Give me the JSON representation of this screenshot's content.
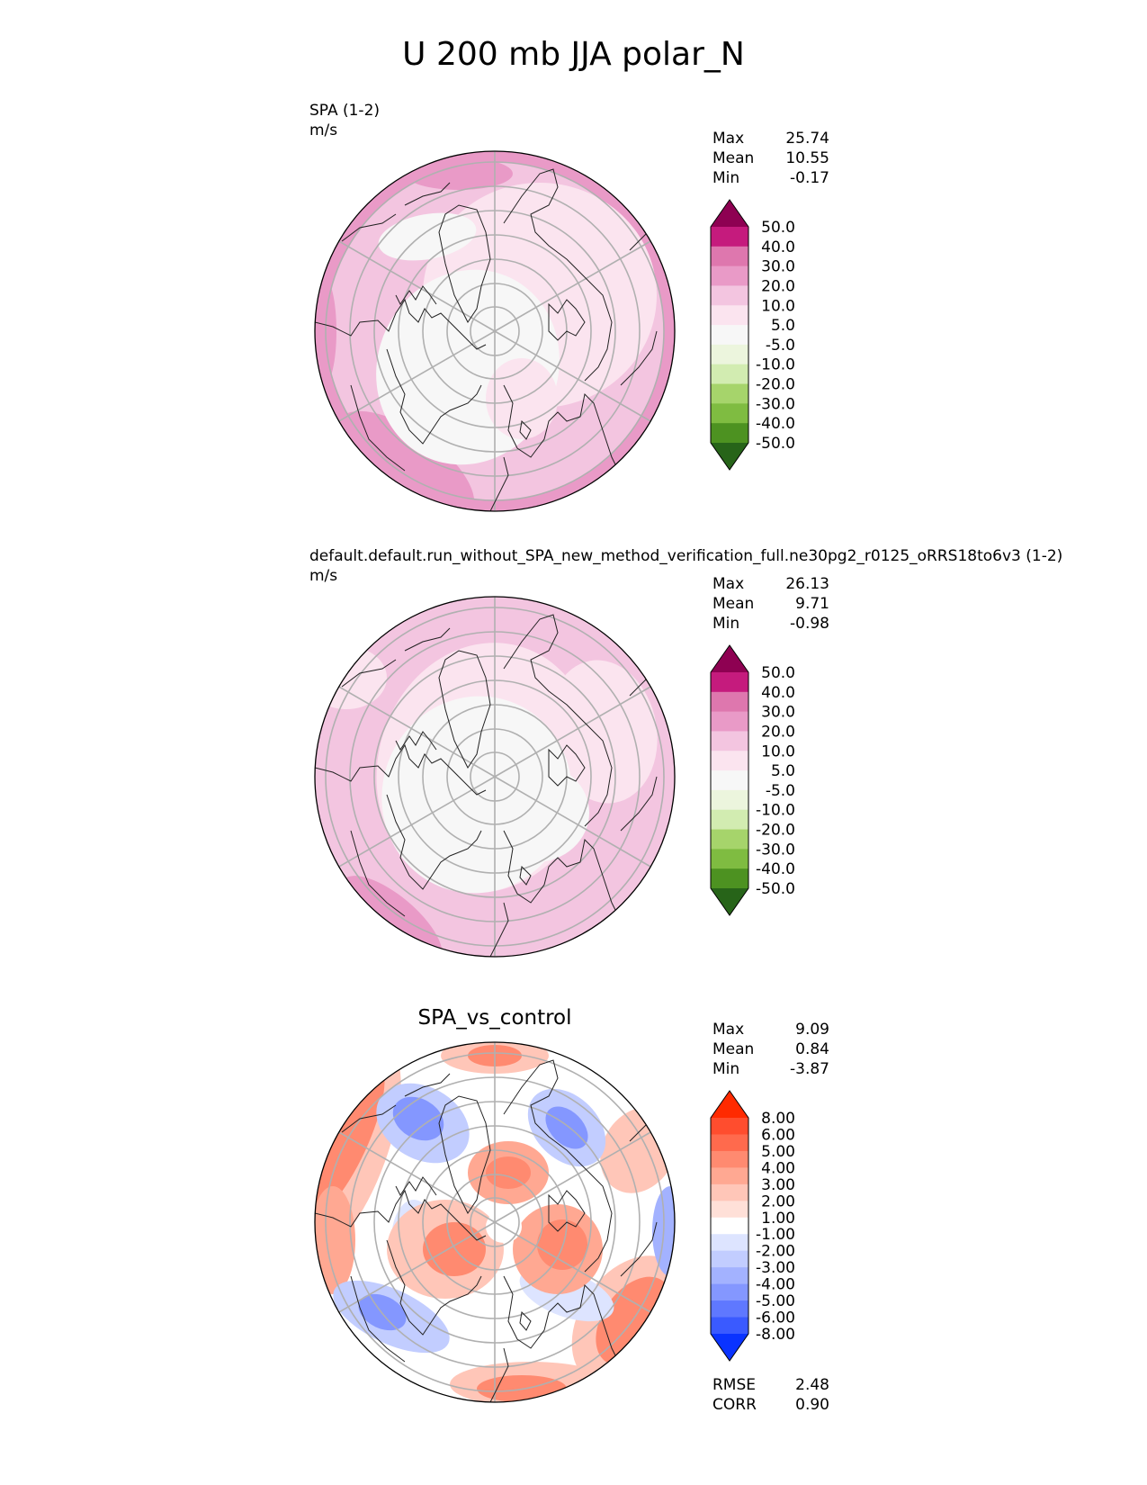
{
  "title": "U 200 mb JJA polar_N",
  "panels": [
    {
      "id": "test",
      "label_line1": "SPA (1-2)",
      "label_line2": "m/s",
      "center_title": "",
      "stats": [
        {
          "name": "Max",
          "value": "25.74"
        },
        {
          "name": "Mean",
          "value": "10.55"
        },
        {
          "name": "Min",
          "value": "-0.17"
        }
      ],
      "colorbar_ticks": [
        "50.0",
        "40.0",
        "30.0",
        "20.0",
        "10.0",
        "5.0",
        "-5.0",
        "-10.0",
        "-20.0",
        "-30.0",
        "-40.0",
        "-50.0"
      ],
      "colorbar_colors": [
        "#8e0152",
        "#c51b7d",
        "#de77ae",
        "#e99ac7",
        "#f3c5e0",
        "#fbe4ef",
        "#f7f7f7",
        "#ecf5dd",
        "#d2ecb1",
        "#a6d46b",
        "#7fbc41",
        "#4d9221",
        "#276419"
      ]
    },
    {
      "id": "reference",
      "label_line1": "default.default.run_without_SPA_new_method_verification_full.ne30pg2_r0125_oRRS18to6v3 (1-2)",
      "label_line2": "m/s",
      "center_title": "",
      "stats": [
        {
          "name": "Max",
          "value": "26.13"
        },
        {
          "name": "Mean",
          "value": "9.71"
        },
        {
          "name": "Min",
          "value": "-0.98"
        }
      ],
      "colorbar_ticks": [
        "50.0",
        "40.0",
        "30.0",
        "20.0",
        "10.0",
        "5.0",
        "-5.0",
        "-10.0",
        "-20.0",
        "-30.0",
        "-40.0",
        "-50.0"
      ],
      "colorbar_colors": [
        "#8e0152",
        "#c51b7d",
        "#de77ae",
        "#e99ac7",
        "#f3c5e0",
        "#fbe4ef",
        "#f7f7f7",
        "#ecf5dd",
        "#d2ecb1",
        "#a6d46b",
        "#7fbc41",
        "#4d9221",
        "#276419"
      ]
    },
    {
      "id": "difference",
      "label_line1": "",
      "label_line2": "",
      "center_title": "SPA_vs_control",
      "stats": [
        {
          "name": "Max",
          "value": "9.09"
        },
        {
          "name": "Mean",
          "value": "0.84"
        },
        {
          "name": "Min",
          "value": "-3.87"
        }
      ],
      "colorbar_ticks": [
        "8.00",
        "6.00",
        "5.00",
        "4.00",
        "3.00",
        "2.00",
        "1.00",
        "-1.00",
        "-2.00",
        "-3.00",
        "-4.00",
        "-5.00",
        "-6.00",
        "-8.00"
      ],
      "colorbar_colors": [
        "#ff2a00",
        "#ff4d2e",
        "#ff6a4d",
        "#ff8a70",
        "#ffa892",
        "#ffc6b8",
        "#ffe0d8",
        "#ffffff",
        "#dde4ff",
        "#c2cdff",
        "#a3b2ff",
        "#8497ff",
        "#5f78ff",
        "#3a5aff",
        "#0a33ff"
      ],
      "extra_stats": [
        {
          "name": "RMSE",
          "value": "2.48"
        },
        {
          "name": "CORR",
          "value": "0.90"
        }
      ]
    }
  ],
  "chart_data": [
    {
      "type": "heatmap",
      "projection": "north polar stereographic",
      "title": "SPA (1-2)",
      "units": "m/s",
      "levels": [
        -50,
        -40,
        -30,
        -20,
        -10,
        -5,
        5,
        10,
        20,
        30,
        40,
        50
      ],
      "max": 25.74,
      "mean": 10.55,
      "min": -0.17
    },
    {
      "type": "heatmap",
      "projection": "north polar stereographic",
      "title": "default.default.run_without_SPA_new_method_verification_full.ne30pg2_r0125_oRRS18to6v3 (1-2)",
      "units": "m/s",
      "levels": [
        -50,
        -40,
        -30,
        -20,
        -10,
        -5,
        5,
        10,
        20,
        30,
        40,
        50
      ],
      "max": 26.13,
      "mean": 9.71,
      "min": -0.98
    },
    {
      "type": "heatmap",
      "projection": "north polar stereographic",
      "title": "SPA_vs_control",
      "levels": [
        -8,
        -6,
        -5,
        -4,
        -3,
        -2,
        -1,
        1,
        2,
        3,
        4,
        5,
        6,
        8
      ],
      "max": 9.09,
      "mean": 0.84,
      "min": -3.87,
      "rmse": 2.48,
      "corr": 0.9
    }
  ]
}
